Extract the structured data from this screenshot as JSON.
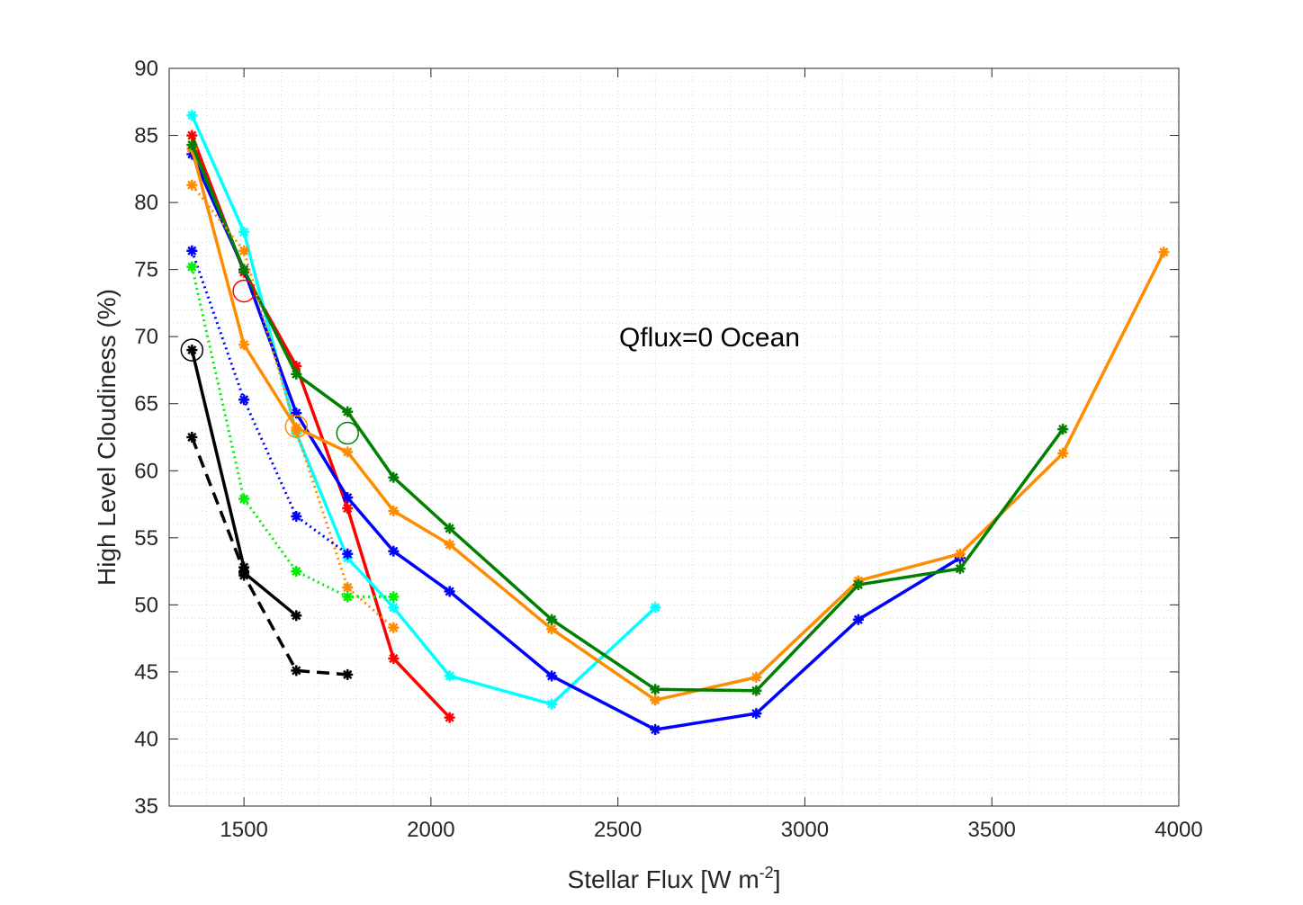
{
  "chart_data": {
    "type": "line",
    "title": "",
    "annotation": "Qflux=0 Ocean",
    "xlabel": "Stellar Flux [W m",
    "xlabel_exponent": "-2",
    "xlabel_suffix": "]",
    "ylabel": "High Level Cloudiness (%)",
    "xlim": [
      1300,
      4000
    ],
    "ylim": [
      35,
      90
    ],
    "xticks": [
      1500,
      2000,
      2500,
      3000,
      3500,
      4000
    ],
    "yticks": [
      35,
      40,
      45,
      50,
      55,
      60,
      65,
      70,
      75,
      80,
      85,
      90
    ],
    "xtick_labels": [
      "1500",
      "2000",
      "2500",
      "3000",
      "3500",
      "4000"
    ],
    "ytick_labels": [
      "35",
      "40",
      "45",
      "50",
      "55",
      "60",
      "65",
      "70",
      "75",
      "80",
      "85",
      "90"
    ],
    "grid": "minor dotted",
    "series": [
      {
        "name": "red solid",
        "color": "#ff0000",
        "style": "solid",
        "x": [
          1361,
          1500,
          1640,
          1777,
          1900,
          2050
        ],
        "y": [
          85.0,
          74.8,
          67.8,
          57.2,
          46.0,
          41.6
        ]
      },
      {
        "name": "cyan solid",
        "color": "#00ffff",
        "style": "solid",
        "x": [
          1361,
          1500,
          1640,
          1777,
          1900,
          2050,
          2323,
          2600
        ],
        "y": [
          86.5,
          77.8,
          62.8,
          53.5,
          49.8,
          44.7,
          42.6,
          49.8
        ]
      },
      {
        "name": "blue solid",
        "color": "#0000ff",
        "style": "solid",
        "x": [
          1361,
          1500,
          1640,
          1777,
          1900,
          2050,
          2323,
          2600,
          2870,
          3143,
          3415
        ],
        "y": [
          83.6,
          75.0,
          64.3,
          58.0,
          54.0,
          51.0,
          44.7,
          40.7,
          41.9,
          48.9,
          53.5
        ]
      },
      {
        "name": "orange solid",
        "color": "#ff8c00",
        "style": "solid",
        "x": [
          1361,
          1500,
          1640,
          1777,
          1900,
          2050,
          2323,
          2600,
          2870,
          3143,
          3415,
          3690,
          3960
        ],
        "y": [
          84.0,
          69.4,
          63.2,
          61.4,
          57.0,
          54.5,
          48.2,
          42.9,
          44.6,
          51.8,
          53.8,
          61.3,
          76.3
        ]
      },
      {
        "name": "green solid",
        "color": "#008000",
        "style": "solid",
        "x": [
          1361,
          1500,
          1640,
          1777,
          1900,
          2050,
          2323,
          2600,
          2870,
          3143,
          3415,
          3690
        ],
        "y": [
          84.3,
          75.0,
          67.2,
          64.4,
          59.5,
          55.7,
          48.9,
          43.7,
          43.6,
          51.5,
          52.7,
          63.1
        ]
      },
      {
        "name": "orange dotted",
        "color": "#ff8c00",
        "style": "dotted",
        "x": [
          1361,
          1500,
          1640,
          1777,
          1900
        ],
        "y": [
          81.3,
          76.4,
          63.0,
          51.3,
          48.3
        ]
      },
      {
        "name": "blue dotted",
        "color": "#0000ff",
        "style": "dotted",
        "x": [
          1361,
          1500,
          1640,
          1777
        ],
        "y": [
          76.4,
          65.3,
          56.6,
          53.8
        ]
      },
      {
        "name": "green dotted",
        "color": "#00ee00",
        "style": "dotted",
        "x": [
          1361,
          1500,
          1640,
          1777,
          1900
        ],
        "y": [
          75.2,
          57.9,
          52.5,
          50.6,
          50.6
        ]
      },
      {
        "name": "black solid",
        "color": "#000000",
        "style": "solid",
        "x": [
          1361,
          1500,
          1500,
          1640
        ],
        "y": [
          69.0,
          52.8,
          52.4,
          49.2
        ]
      },
      {
        "name": "black dashed",
        "color": "#000000",
        "style": "dashed",
        "x": [
          1361,
          1500,
          1500,
          1640,
          1777
        ],
        "y": [
          62.5,
          52.5,
          52.2,
          45.1,
          44.8
        ]
      }
    ],
    "circles": [
      {
        "color": "#ff0000",
        "x": 1500,
        "y": 73.4
      },
      {
        "color": "#ff8c00",
        "x": 1640,
        "y": 63.3
      },
      {
        "color": "#008000",
        "x": 1777,
        "y": 62.8
      },
      {
        "color": "#000000",
        "x": 1361,
        "y": 69.0
      }
    ]
  }
}
